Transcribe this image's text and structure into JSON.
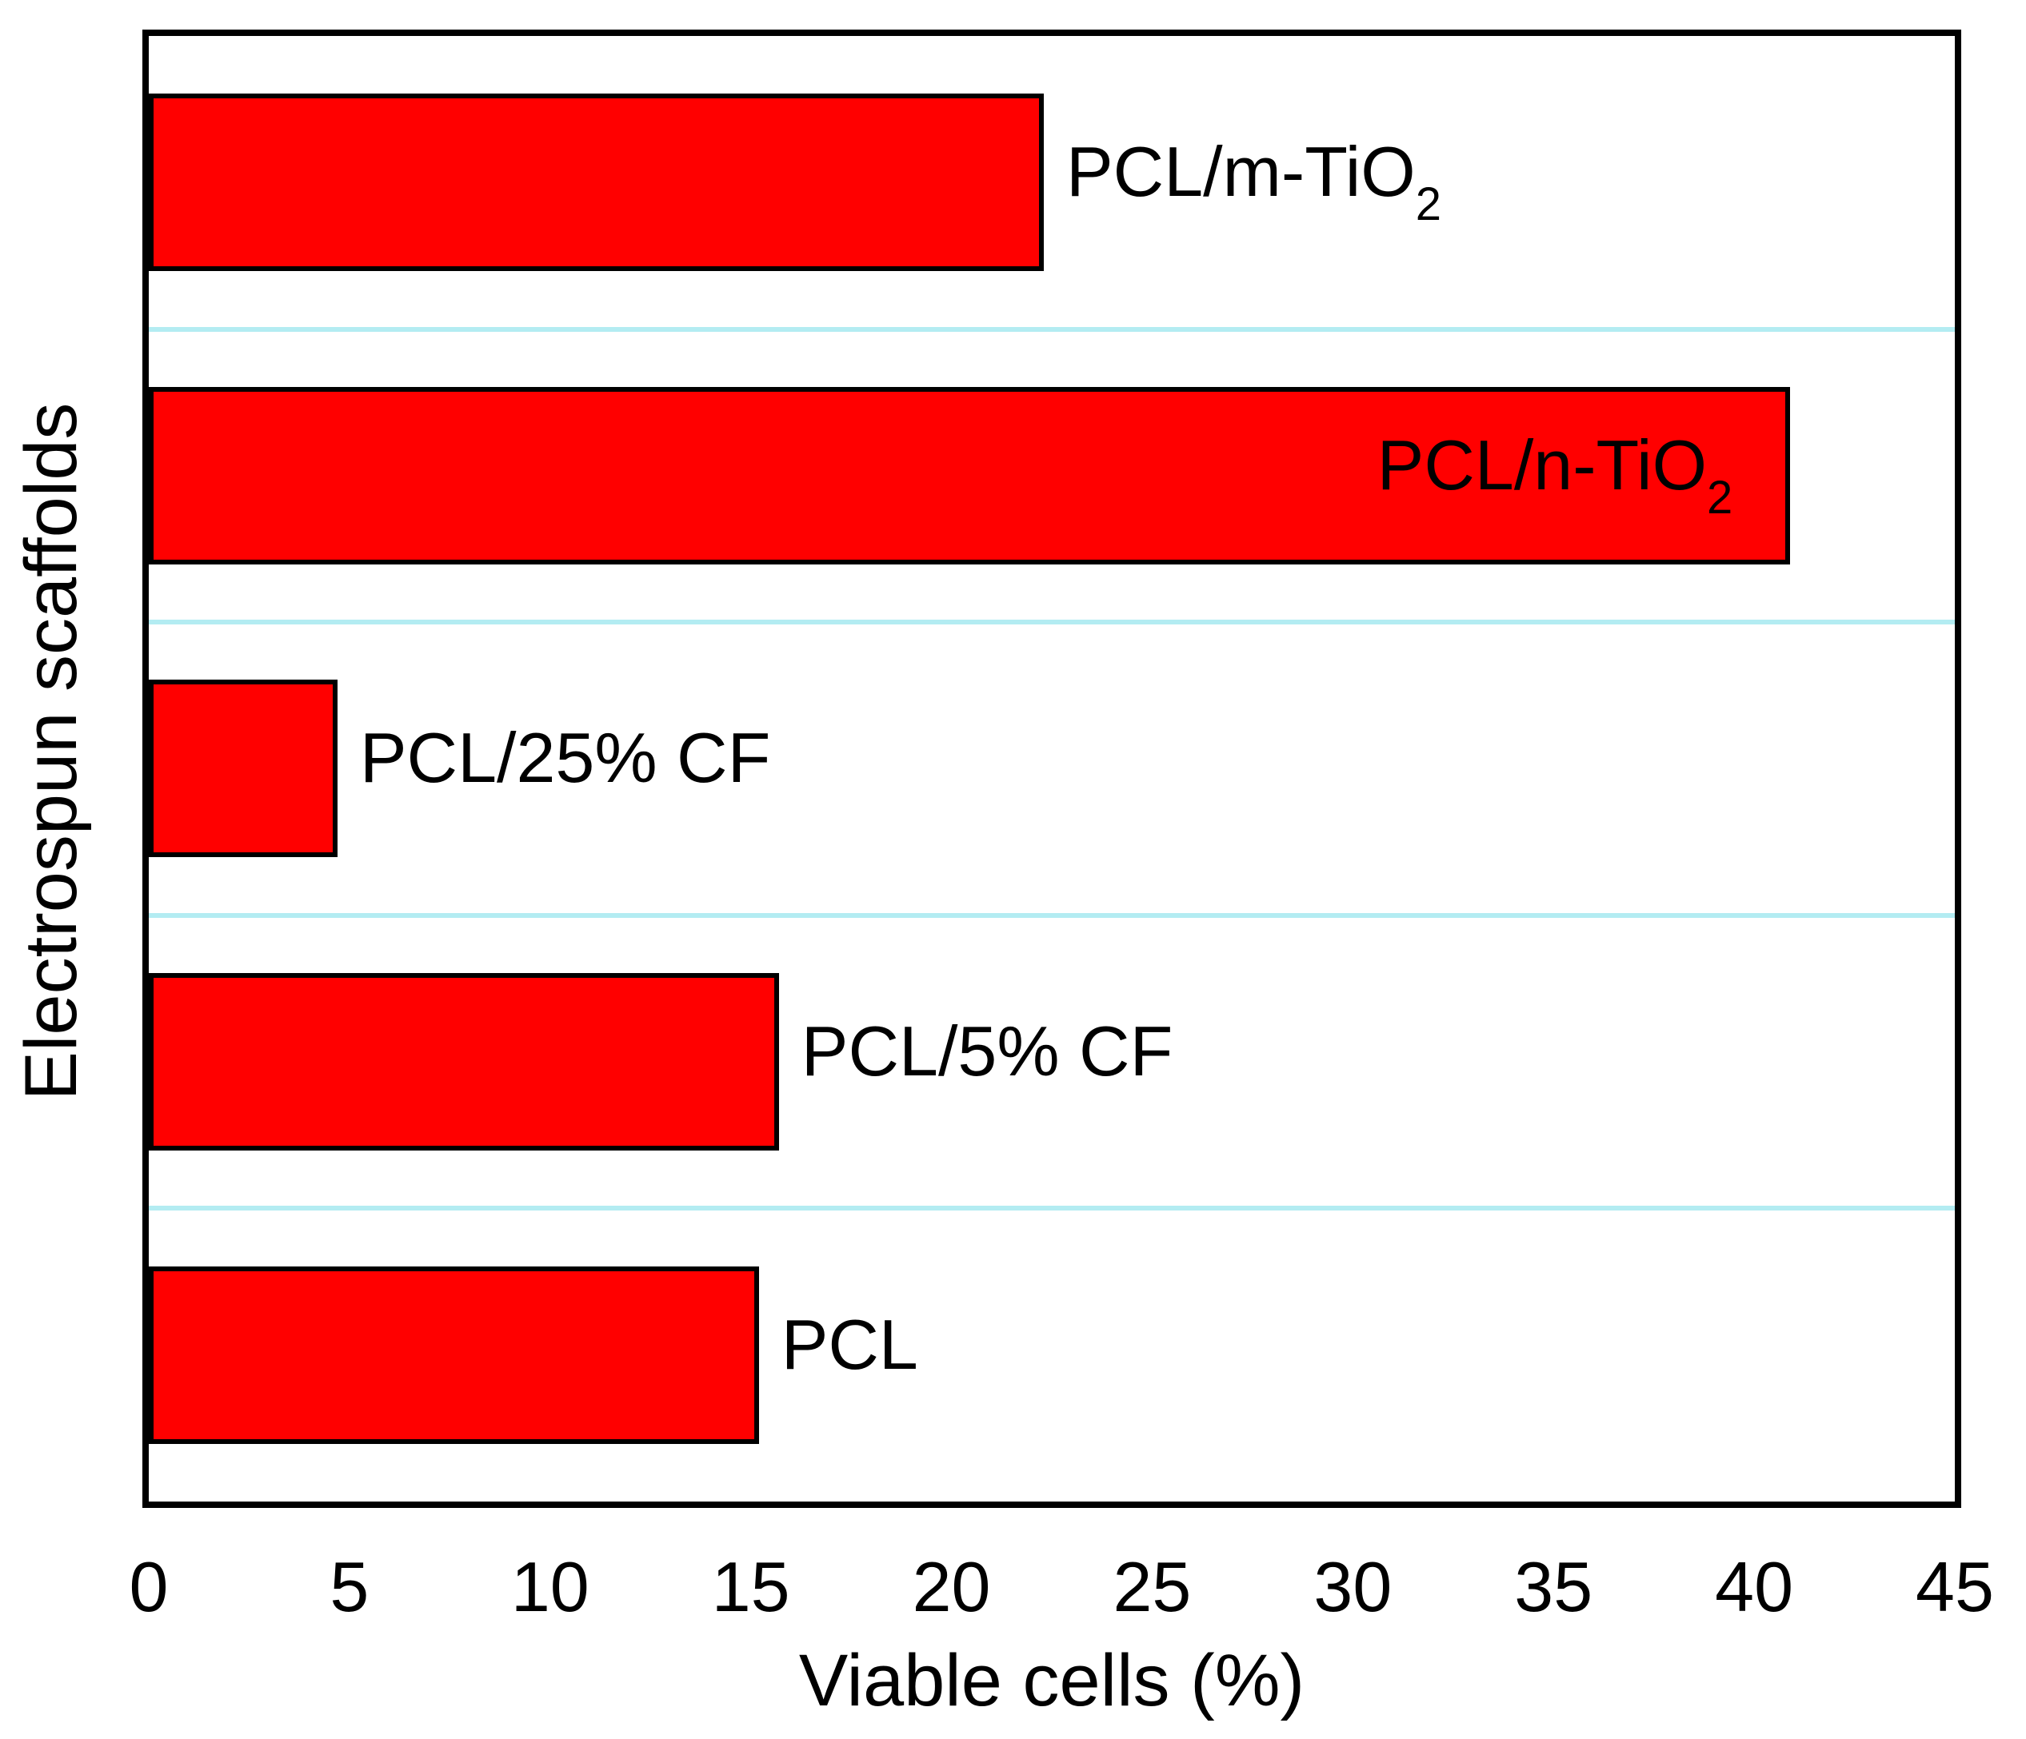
{
  "chart_data": {
    "type": "bar",
    "orientation": "horizontal",
    "title": "",
    "xlabel": "Viable cells (%)",
    "ylabel": "Electrospun scaffolds",
    "xlim": [
      0,
      45
    ],
    "x_ticks": [
      0,
      5,
      10,
      15,
      20,
      25,
      30,
      35,
      40,
      45
    ],
    "grid": "horizontal lines at category boundaries",
    "legend": "none",
    "bars_top_to_bottom": [
      {
        "label": "PCL/m-TiO2",
        "label_text": "PCL/m-TiO",
        "label_sub": "2",
        "value": 22.3,
        "label_inside": false
      },
      {
        "label": "PCL/n-TiO2",
        "label_text": "PCL/n-TiO",
        "label_sub": "2",
        "value": 40.9,
        "label_inside": true
      },
      {
        "label": "PCL/25% CF",
        "label_text": "PCL/25% CF",
        "label_sub": "",
        "value": 4.7,
        "label_inside": false
      },
      {
        "label": "PCL/5% CF",
        "label_text": "PCL/5% CF",
        "label_sub": "",
        "value": 15.7,
        "label_inside": false
      },
      {
        "label": "PCL",
        "label_text": "PCL",
        "label_sub": "",
        "value": 15.2,
        "label_inside": false
      }
    ],
    "colors": {
      "bar_fill": "#ff0000",
      "bar_border": "#000000",
      "gridline": "#b3ecf2",
      "frame": "#000000",
      "text": "#000000"
    }
  }
}
